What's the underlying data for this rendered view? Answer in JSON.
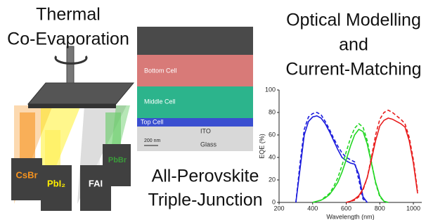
{
  "left_title": [
    "Thermal",
    "Co-Evaporation"
  ],
  "sources": [
    "CsBr",
    "PbI₂",
    "FAI",
    "PbBr"
  ],
  "sem_labels": [
    "Bottom Cell",
    "Middle Cell",
    "Top Cell",
    "ITO",
    "Glass",
    "200 nm"
  ],
  "middle_title": [
    "All-Perovskite",
    "Triple-Junction"
  ],
  "right_title": [
    "Optical Modelling",
    "and",
    "Current-Matching"
  ],
  "chart_data": {
    "type": "line",
    "xlabel": "Wavelength (nm)",
    "ylabel": "EQE (%)",
    "xlim": [
      200,
      1050
    ],
    "xticks": [
      200,
      400,
      600,
      800,
      1000
    ],
    "ylim": [
      0,
      100
    ],
    "yticks": [
      0,
      20,
      40,
      60,
      80,
      100
    ],
    "x": [
      300,
      325,
      350,
      375,
      400,
      425,
      450,
      475,
      500,
      525,
      550,
      575,
      600,
      625,
      650,
      675,
      700,
      725,
      750,
      775,
      800,
      825,
      850,
      875,
      900,
      925,
      950,
      975,
      1000,
      1025
    ],
    "series": [
      {
        "color": "#1a1adc",
        "dashed": false,
        "values": [
          0,
          30,
          60,
          72,
          76,
          77,
          75,
          70,
          63,
          55,
          47,
          40,
          37,
          35,
          34,
          25,
          5,
          0,
          null,
          null,
          null,
          null,
          null,
          null,
          null,
          null,
          null,
          null,
          null,
          null
        ]
      },
      {
        "color": "#1a1adc",
        "dashed": true,
        "values": [
          0,
          35,
          65,
          76,
          79,
          80,
          78,
          72,
          65,
          57,
          50,
          44,
          40,
          38,
          36,
          20,
          3,
          0,
          null,
          null,
          null,
          null,
          null,
          null,
          null,
          null,
          null,
          null,
          null,
          null
        ]
      },
      {
        "color": "#22d622",
        "dashed": false,
        "values": [
          null,
          null,
          null,
          null,
          0,
          1,
          2,
          4,
          7,
          12,
          18,
          27,
          38,
          50,
          60,
          65,
          63,
          52,
          35,
          18,
          6,
          1,
          0,
          null,
          null,
          null,
          null,
          null,
          null,
          null
        ]
      },
      {
        "color": "#22d622",
        "dashed": true,
        "values": [
          null,
          null,
          null,
          null,
          0,
          1,
          2,
          5,
          8,
          14,
          22,
          33,
          45,
          57,
          66,
          70,
          67,
          55,
          36,
          17,
          5,
          1,
          0,
          null,
          null,
          null,
          null,
          null,
          null,
          null
        ]
      },
      {
        "color": "#e81c1c",
        "dashed": false,
        "values": [
          null,
          null,
          null,
          null,
          null,
          null,
          null,
          null,
          null,
          null,
          null,
          null,
          0,
          1,
          3,
          6,
          12,
          22,
          38,
          55,
          68,
          73,
          75,
          74,
          72,
          70,
          67,
          55,
          35,
          8
        ]
      },
      {
        "color": "#e81c1c",
        "dashed": true,
        "values": [
          null,
          null,
          null,
          null,
          null,
          null,
          null,
          null,
          null,
          null,
          null,
          null,
          0,
          1,
          2,
          5,
          11,
          22,
          40,
          60,
          74,
          80,
          82,
          80,
          77,
          74,
          70,
          58,
          38,
          10
        ]
      }
    ]
  }
}
